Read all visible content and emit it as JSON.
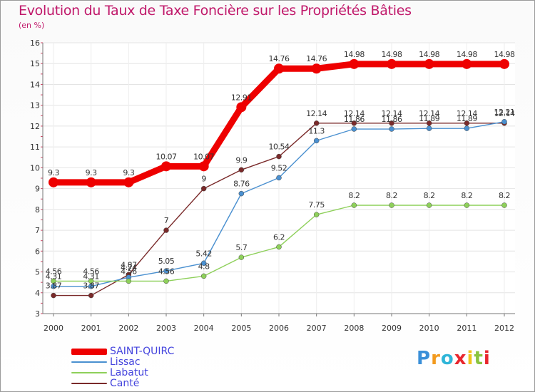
{
  "title": "Evolution du Taux de Taxe Foncière sur les Propriétés Bâties",
  "subtitle": "(en %)",
  "logo": {
    "text": "Proxiti",
    "letters": [
      "P",
      "r",
      "o",
      "x",
      "i",
      "t",
      "i"
    ],
    "colors": [
      "#3a8fd8",
      "#f29a1e",
      "#2fb5d8",
      "#e8262d",
      "#f0c419",
      "#8ac43f",
      "#e8262d"
    ]
  },
  "chart_data": {
    "type": "line",
    "title": "Evolution du Taux de Taxe Foncière sur les Propriétés Bâties",
    "ylabel": "(en %)",
    "xlabel": "",
    "ylim": [
      3,
      16
    ],
    "yticks": [
      3,
      4,
      5,
      6,
      7,
      8,
      9,
      10,
      11,
      12,
      13,
      14,
      15,
      16
    ],
    "grid": true,
    "legend_position": "bottom-left",
    "x": [
      "2000",
      "2001",
      "2002",
      "2003",
      "2004",
      "2005",
      "2006",
      "2007",
      "2008",
      "2009",
      "2010",
      "2011",
      "2012"
    ],
    "series": [
      {
        "name": "SAINT-QUIRC",
        "color": "#ee0000",
        "values": [
          9.3,
          9.3,
          9.3,
          10.07,
          10.07,
          12.91,
          14.76,
          14.76,
          14.98,
          14.98,
          14.98,
          14.98,
          14.98
        ],
        "labels": [
          "9.3",
          "9.3",
          "9.3",
          "10.07",
          "10.07",
          "12.91",
          "14.76",
          "14.76",
          "14.98",
          "14.98",
          "14.98",
          "14.98",
          "14.98"
        ]
      },
      {
        "name": "Lissac",
        "color": "#4a90d0",
        "values": [
          4.31,
          4.31,
          4.74,
          5.05,
          5.42,
          8.76,
          9.52,
          11.3,
          11.86,
          11.86,
          11.89,
          11.89,
          12.21
        ],
        "labels": [
          "4.31",
          "4.31",
          "4.74",
          "5.05",
          "5.42",
          "8.76",
          "9.52",
          "11.3",
          "11.86",
          "11.86",
          "11.89",
          "11.89",
          "12.21"
        ]
      },
      {
        "name": "Labatut",
        "color": "#8ed05a",
        "values": [
          4.56,
          4.56,
          4.56,
          4.56,
          4.8,
          5.7,
          6.2,
          7.75,
          8.2,
          8.2,
          8.2,
          8.2,
          8.2
        ],
        "labels": [
          "4.56",
          "4.56",
          "4.56",
          "4.56",
          "4.8",
          "5.7",
          "6.2",
          "7.75",
          "8.2",
          "8.2",
          "8.2",
          "8.2",
          "8.2"
        ]
      },
      {
        "name": "Canté",
        "color": "#7a2a2a",
        "values": [
          3.87,
          3.87,
          4.87,
          7,
          9,
          9.9,
          10.54,
          12.14,
          12.14,
          12.14,
          12.14,
          12.14,
          12.14
        ],
        "labels": [
          "3.87",
          "3.87",
          "4.87",
          "7",
          "9",
          "9.9",
          "10.54",
          "12.14",
          "12.14",
          "12.14",
          "12.14",
          "12.14",
          "12.14"
        ]
      }
    ]
  }
}
